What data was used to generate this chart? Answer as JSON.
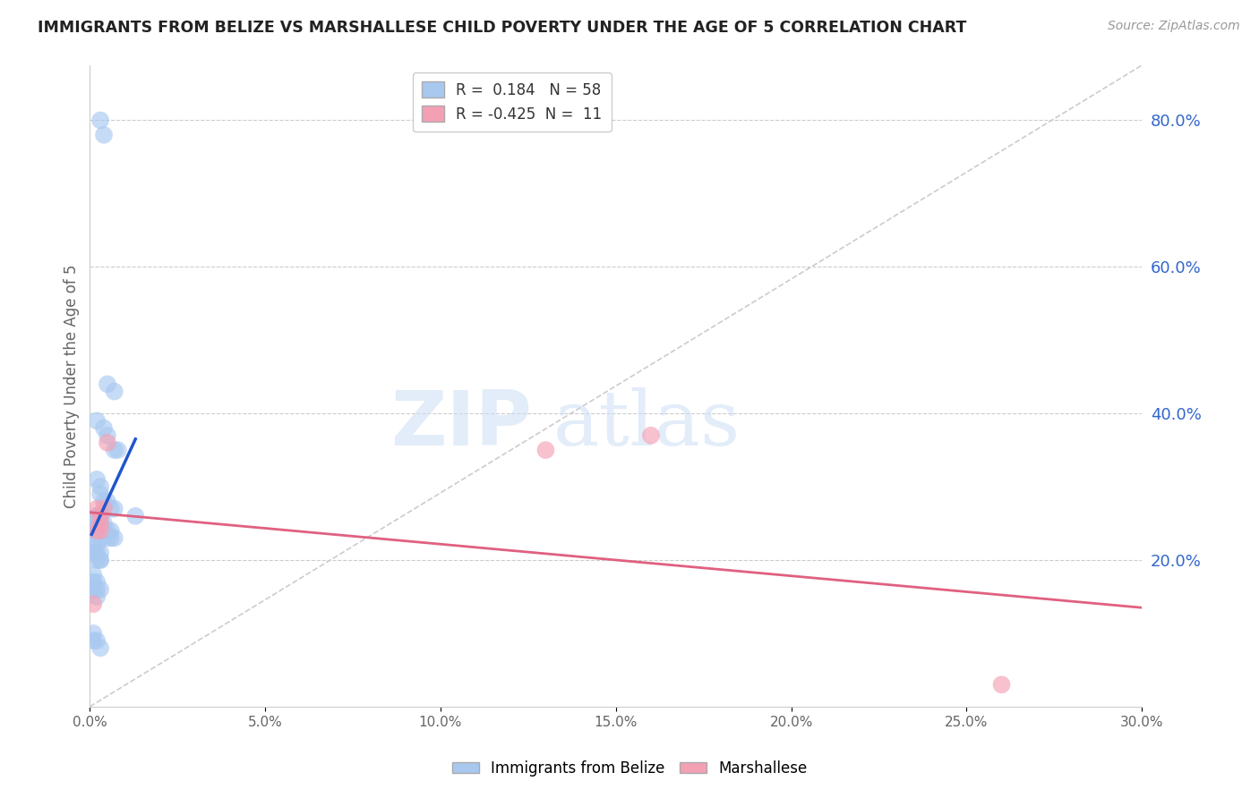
{
  "title": "IMMIGRANTS FROM BELIZE VS MARSHALLESE CHILD POVERTY UNDER THE AGE OF 5 CORRELATION CHART",
  "source": "Source: ZipAtlas.com",
  "ylabel": "Child Poverty Under the Age of 5",
  "xlim": [
    0.0,
    0.3
  ],
  "ylim": [
    0.0,
    0.875
  ],
  "xticks": [
    0.0,
    0.05,
    0.1,
    0.15,
    0.2,
    0.25,
    0.3
  ],
  "yticks_right": [
    0.2,
    0.4,
    0.6,
    0.8
  ],
  "ytick_labels_right": [
    "20.0%",
    "40.0%",
    "60.0%",
    "80.0%"
  ],
  "xtick_labels": [
    "0.0%",
    "5.0%",
    "10.0%",
    "15.0%",
    "20.0%",
    "25.0%",
    "30.0%"
  ],
  "blue_R": 0.184,
  "blue_N": 58,
  "pink_R": -0.425,
  "pink_N": 11,
  "blue_color": "#a8c8f0",
  "blue_line_color": "#2255cc",
  "pink_color": "#f4a0b4",
  "pink_line_color": "#e06080",
  "legend_blue_label": "Immigrants from Belize",
  "legend_pink_label": "Marshallese",
  "watermark_zip": "ZIP",
  "watermark_atlas": "atlas",
  "background_color": "#ffffff",
  "grid_color": "#cccccc",
  "title_color": "#222222",
  "right_tick_color": "#3366cc",
  "blue_scatter_x": [
    0.003,
    0.004,
    0.005,
    0.007,
    0.002,
    0.004,
    0.005,
    0.007,
    0.008,
    0.002,
    0.003,
    0.003,
    0.004,
    0.005,
    0.006,
    0.007,
    0.002,
    0.002,
    0.003,
    0.003,
    0.004,
    0.004,
    0.005,
    0.005,
    0.006,
    0.006,
    0.007,
    0.001,
    0.001,
    0.002,
    0.002,
    0.002,
    0.002,
    0.003,
    0.003,
    0.003,
    0.003,
    0.003,
    0.001,
    0.001,
    0.002,
    0.002,
    0.002,
    0.003,
    0.003,
    0.003,
    0.001,
    0.001,
    0.001,
    0.002,
    0.002,
    0.002,
    0.003,
    0.001,
    0.001,
    0.002,
    0.003,
    0.013
  ],
  "blue_scatter_y": [
    0.8,
    0.78,
    0.44,
    0.43,
    0.39,
    0.38,
    0.37,
    0.35,
    0.35,
    0.31,
    0.3,
    0.29,
    0.28,
    0.28,
    0.27,
    0.27,
    0.26,
    0.25,
    0.26,
    0.25,
    0.25,
    0.24,
    0.24,
    0.23,
    0.24,
    0.23,
    0.23,
    0.25,
    0.24,
    0.26,
    0.25,
    0.25,
    0.24,
    0.26,
    0.25,
    0.25,
    0.24,
    0.23,
    0.22,
    0.21,
    0.22,
    0.21,
    0.2,
    0.21,
    0.2,
    0.2,
    0.18,
    0.17,
    0.16,
    0.17,
    0.16,
    0.15,
    0.16,
    0.1,
    0.09,
    0.09,
    0.08,
    0.26
  ],
  "pink_scatter_x": [
    0.001,
    0.002,
    0.003,
    0.003,
    0.004,
    0.005,
    0.002,
    0.003,
    0.13,
    0.16,
    0.26
  ],
  "pink_scatter_y": [
    0.14,
    0.27,
    0.26,
    0.25,
    0.27,
    0.36,
    0.24,
    0.24,
    0.35,
    0.37,
    0.03
  ],
  "blue_trend_x": [
    0.0005,
    0.013
  ],
  "blue_trend_y": [
    0.235,
    0.365
  ],
  "pink_trend_x": [
    0.0,
    0.3
  ],
  "pink_trend_y": [
    0.265,
    0.135
  ],
  "diag_line_x": [
    0.0,
    0.3
  ],
  "diag_line_y": [
    0.0,
    0.875
  ]
}
